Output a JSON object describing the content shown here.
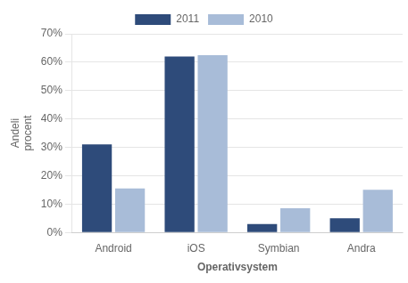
{
  "chart_data": {
    "type": "bar",
    "categories": [
      "Android",
      "iOS",
      "Symbian",
      "Andra"
    ],
    "series": [
      {
        "name": "2011",
        "color": "#2E4B7A",
        "values": [
          31,
          62,
          3,
          5
        ]
      },
      {
        "name": "2010",
        "color": "#A8BCD8",
        "values": [
          15.5,
          62.5,
          8.5,
          15
        ]
      }
    ],
    "xlabel": "Operativsystem",
    "ylabel": "Andeli\nprocent",
    "ylim": [
      0,
      70
    ],
    "yticks": [
      {
        "value": 0,
        "label": "0%"
      },
      {
        "value": 10,
        "label": "10%"
      },
      {
        "value": 20,
        "label": "20%"
      },
      {
        "value": 30,
        "label": "30%"
      },
      {
        "value": 40,
        "label": "40%"
      },
      {
        "value": 50,
        "label": "50%"
      },
      {
        "value": 60,
        "label": "60%"
      },
      {
        "value": 70,
        "label": "70%"
      }
    ],
    "grid": true,
    "legend": "top"
  }
}
